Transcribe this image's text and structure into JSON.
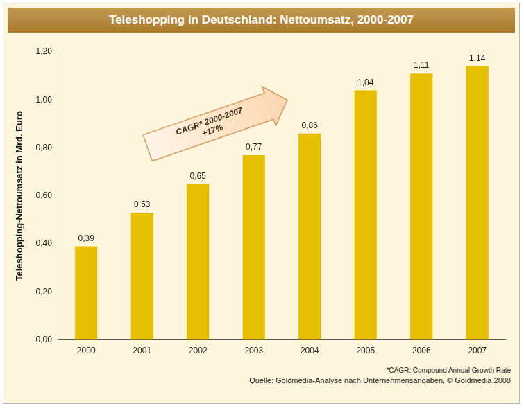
{
  "chart_data": {
    "type": "bar",
    "title": "Teleshopping in Deutschland: Nettoumsatz, 2000-2007",
    "y_label": "Teleshopping-Nettoumsatz in Mrd. Euro",
    "categories": [
      "2000",
      "2001",
      "2002",
      "2003",
      "2004",
      "2005",
      "2006",
      "2007"
    ],
    "values": [
      0.39,
      0.53,
      0.65,
      0.77,
      0.86,
      1.04,
      1.11,
      1.14
    ],
    "value_labels": [
      "0,39",
      "0,53",
      "0,65",
      "0,77",
      "0,86",
      "1,04",
      "1,11",
      "1,14"
    ],
    "color": "#e5bf00",
    "ylim": [
      0,
      1.2
    ],
    "yticks": [
      {
        "value": 0,
        "label": "0,00"
      },
      {
        "value": 0.2,
        "label": "0,20"
      },
      {
        "value": 0.4,
        "label": "0,40"
      },
      {
        "value": 0.6,
        "label": "0,60"
      },
      {
        "value": 0.8,
        "label": "0,80"
      },
      {
        "value": 1.0,
        "label": "1,00"
      },
      {
        "value": 1.2,
        "label": "1,20"
      }
    ],
    "grid": false,
    "data_labels": true,
    "annotations": [
      "CAGR* 2000-2007",
      "+17%"
    ],
    "notes": [
      "*CAGR: Compound Annual Growth Rate",
      "Quelle: Goldmedia-Analyse nach Unternehmensangaben, © Goldmedia 2008"
    ]
  }
}
